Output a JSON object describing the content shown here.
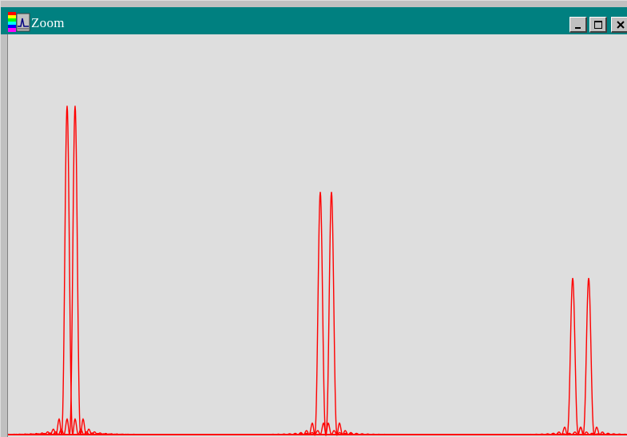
{
  "window": {
    "title": "Zoom",
    "app_icon": "spectrum-app-icon",
    "buttons": {
      "minimize_icon": "minimize-icon",
      "maximize_icon": "maximize-icon",
      "close_icon": "close-icon"
    }
  },
  "colors": {
    "title_bar": "#008080",
    "canvas_bg": "#dedede",
    "trace": "#ff0000"
  },
  "chart_data": {
    "type": "line",
    "title": "",
    "xlabel": "",
    "ylabel": "",
    "grid": false,
    "xlim": [
      0,
      777
    ],
    "ylim": [
      0,
      1
    ],
    "series": [
      {
        "peaks": [
          {
            "center": 74,
            "height": 0.84,
            "width": 3.5
          },
          {
            "center": 391,
            "height": 0.62,
            "width": 3.5
          },
          {
            "center": 707,
            "height": 0.4,
            "width": 3.5
          }
        ]
      },
      {
        "peaks": [
          {
            "center": 84,
            "height": 0.84,
            "width": 3.5
          },
          {
            "center": 405,
            "height": 0.62,
            "width": 3.5
          },
          {
            "center": 727,
            "height": 0.4,
            "width": 3.5
          }
        ]
      }
    ]
  }
}
